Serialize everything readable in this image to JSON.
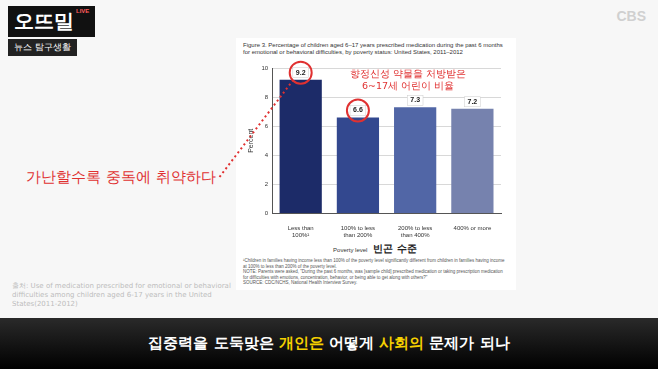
{
  "chart_data": {
    "type": "bar",
    "title": "Figure 3. Percentage of children aged 6–17 years prescribed medication during the past 6 months for emotional or behavioral difficulties, by poverty status: United States, 2011–2012",
    "categories": [
      "Less than 100%¹",
      "100% to less than 200%",
      "200% to less than 400%",
      "400% or more"
    ],
    "values": [
      9.2,
      6.6,
      7.3,
      7.2
    ],
    "colors": [
      "#1c2b68",
      "#33488f",
      "#5166a6",
      "#7682ae"
    ],
    "ylim": [
      0,
      10
    ],
    "yticks": [
      0,
      2,
      4,
      6,
      8,
      10
    ],
    "grid": true,
    "data_labels": true,
    "y_label": "Percent",
    "x_label": "Poverty level",
    "annotations": {
      "x_label_ko": "빈곤 수준",
      "bar_note": [
        "향정신성 약물을 처방받은",
        "6~17세 어린이 비율"
      ],
      "claim": "가난할수록 중독에 취약하다"
    },
    "footnotes": [
      "¹Children in families having income less than 100% of the poverty level significantly different from children in families having income at 100% to less than 200% of the poverty level.",
      "NOTE: Parents were asked, \"During the past 6 months, was [sample child] prescribed medication or taking prescription medication for difficulties with emotions, concentration, behavior, or being able to get along with others?\"",
      "SOURCE: CDC/NCHS, National Health Interview Survey."
    ]
  },
  "broadcast": {
    "logo": "오뜨밀",
    "logo_badge": "LIVE",
    "segment": "뉴스 탐구생활",
    "channel": "CBS",
    "source": "출처: Use of medication prescribed for emotional or behavioral difficulties among children aged 6-17 years in the United States(2011-2012)",
    "caption": [
      {
        "text": "집중력을 도둑맞은 ",
        "color": "#ffffff"
      },
      {
        "text": "개인은",
        "color": "#f5d000"
      },
      {
        "text": " 어떻게 ",
        "color": "#ffffff"
      },
      {
        "text": "사회의",
        "color": "#f5d000"
      },
      {
        "text": " 문제가 되나",
        "color": "#ffffff"
      }
    ]
  }
}
